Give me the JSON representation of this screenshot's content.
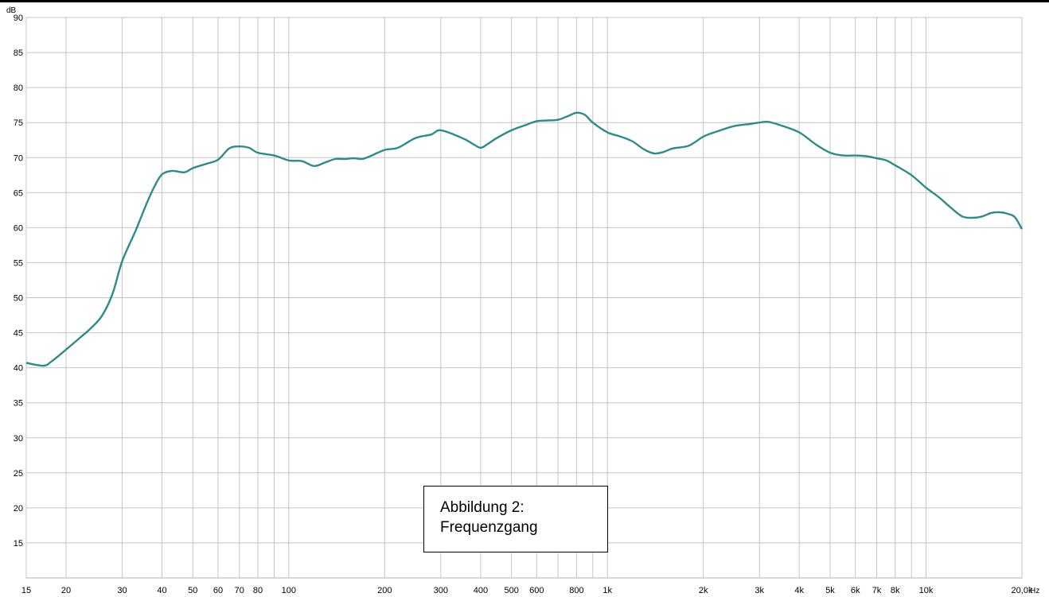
{
  "chart_data": {
    "type": "line",
    "x_scale": "log",
    "xlabel": "",
    "ylabel": "",
    "y_unit": "dB",
    "x_unit": "Hz",
    "xlim": [
      15,
      20000
    ],
    "ylim": [
      10,
      90
    ],
    "grid": true,
    "x_ticks": [
      {
        "value": 15,
        "label": "15"
      },
      {
        "value": 20,
        "label": "20"
      },
      {
        "value": 30,
        "label": "30"
      },
      {
        "value": 40,
        "label": "40"
      },
      {
        "value": 50,
        "label": "50"
      },
      {
        "value": 60,
        "label": "60"
      },
      {
        "value": 70,
        "label": "70"
      },
      {
        "value": 80,
        "label": "80"
      },
      {
        "value": 100,
        "label": "100"
      },
      {
        "value": 200,
        "label": "200"
      },
      {
        "value": 300,
        "label": "300"
      },
      {
        "value": 400,
        "label": "400"
      },
      {
        "value": 500,
        "label": "500"
      },
      {
        "value": 600,
        "label": "600"
      },
      {
        "value": 800,
        "label": "800"
      },
      {
        "value": 1000,
        "label": "1k"
      },
      {
        "value": 2000,
        "label": "2k"
      },
      {
        "value": 3000,
        "label": "3k"
      },
      {
        "value": 4000,
        "label": "4k"
      },
      {
        "value": 5000,
        "label": "5k"
      },
      {
        "value": 6000,
        "label": "6k"
      },
      {
        "value": 7000,
        "label": "7k"
      },
      {
        "value": 8000,
        "label": "8k"
      },
      {
        "value": 10000,
        "label": "10k"
      },
      {
        "value": 20000,
        "label": "20,0k"
      }
    ],
    "x_gridlines": [
      15,
      20,
      30,
      40,
      50,
      60,
      70,
      80,
      90,
      100,
      200,
      300,
      400,
      500,
      600,
      700,
      800,
      900,
      1000,
      2000,
      3000,
      4000,
      5000,
      6000,
      7000,
      8000,
      9000,
      10000,
      20000
    ],
    "y_ticks": [
      15,
      20,
      25,
      30,
      35,
      40,
      45,
      50,
      55,
      60,
      65,
      70,
      75,
      80,
      85,
      90
    ],
    "series": [
      {
        "color": "#2f8a8a",
        "x": [
          15,
          17,
          18,
          20,
          22,
          24,
          26,
          28,
          30,
          33,
          36,
          38,
          40,
          43,
          47,
          50,
          55,
          60,
          65,
          70,
          75,
          80,
          90,
          100,
          110,
          120,
          130,
          140,
          150,
          160,
          170,
          180,
          200,
          220,
          250,
          280,
          300,
          350,
          380,
          400,
          420,
          450,
          500,
          550,
          600,
          650,
          700,
          750,
          800,
          850,
          900,
          1000,
          1100,
          1200,
          1300,
          1400,
          1500,
          1600,
          1800,
          2000,
          2200,
          2500,
          2800,
          3000,
          3200,
          3500,
          4000,
          4500,
          5000,
          5500,
          6000,
          6500,
          7000,
          7500,
          8000,
          9000,
          10000,
          11000,
          12000,
          13000,
          14000,
          15000,
          16000,
          17000,
          18000,
          19000,
          20000
        ],
        "y": [
          40.7,
          40.3,
          40.9,
          42.6,
          44.2,
          45.7,
          47.5,
          50.6,
          55.2,
          59.5,
          63.7,
          66.0,
          67.6,
          68.1,
          67.9,
          68.5,
          69.1,
          69.7,
          71.3,
          71.6,
          71.4,
          70.7,
          70.3,
          69.6,
          69.5,
          68.8,
          69.3,
          69.8,
          69.8,
          69.9,
          69.8,
          70.2,
          71.1,
          71.4,
          72.8,
          73.3,
          73.9,
          72.8,
          71.9,
          71.4,
          71.9,
          72.8,
          73.9,
          74.6,
          75.2,
          75.3,
          75.4,
          75.9,
          76.4,
          76.1,
          75.0,
          73.6,
          73.0,
          72.3,
          71.2,
          70.6,
          70.8,
          71.3,
          71.7,
          73.0,
          73.7,
          74.5,
          74.8,
          75.0,
          75.1,
          74.6,
          73.6,
          71.9,
          70.7,
          70.3,
          70.3,
          70.2,
          69.9,
          69.6,
          68.9,
          67.5,
          65.7,
          64.3,
          62.8,
          61.6,
          61.4,
          61.6,
          62.1,
          62.2,
          62.0,
          61.5,
          59.8
        ]
      }
    ],
    "annotation": {
      "line1": "Abbildung 2:",
      "line2": "Frequenzgang"
    }
  }
}
